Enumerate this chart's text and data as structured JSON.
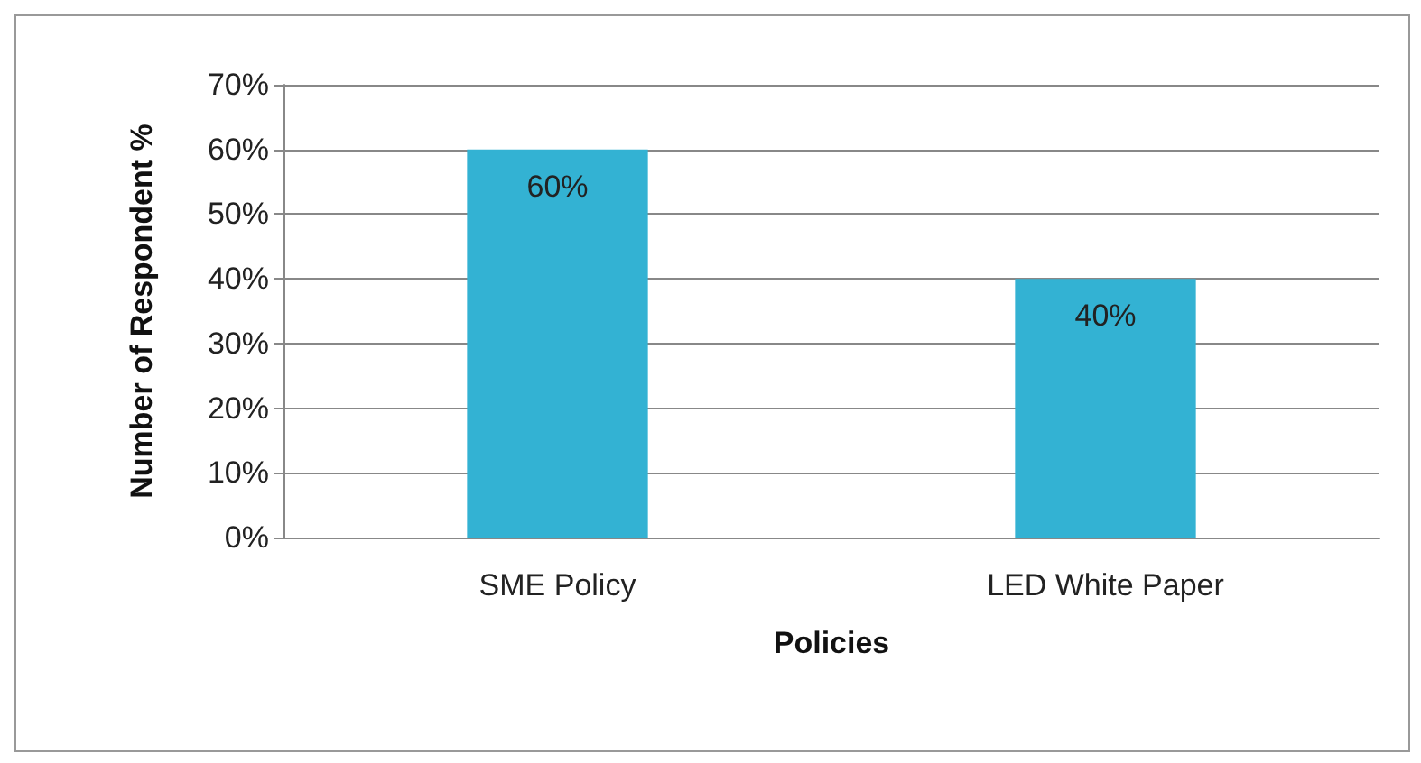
{
  "chart_data": {
    "type": "bar",
    "xlabel": "Policies",
    "ylabel": "Number of Respondent %",
    "categories": [
      "SME Policy",
      "LED White Paper"
    ],
    "values": [
      60,
      40
    ],
    "color": "#33b2d3",
    "value_labels": [
      "60%",
      "40%"
    ],
    "ylim": [
      0,
      70
    ],
    "yticks": [
      {
        "value": 0,
        "label": "0%"
      },
      {
        "value": 10,
        "label": "10%"
      },
      {
        "value": 20,
        "label": "20%"
      },
      {
        "value": 30,
        "label": "30%"
      },
      {
        "value": 40,
        "label": "40%"
      },
      {
        "value": 50,
        "label": "50%"
      },
      {
        "value": 60,
        "label": "60%"
      },
      {
        "value": 70,
        "label": "70%"
      }
    ],
    "grid": "y"
  }
}
